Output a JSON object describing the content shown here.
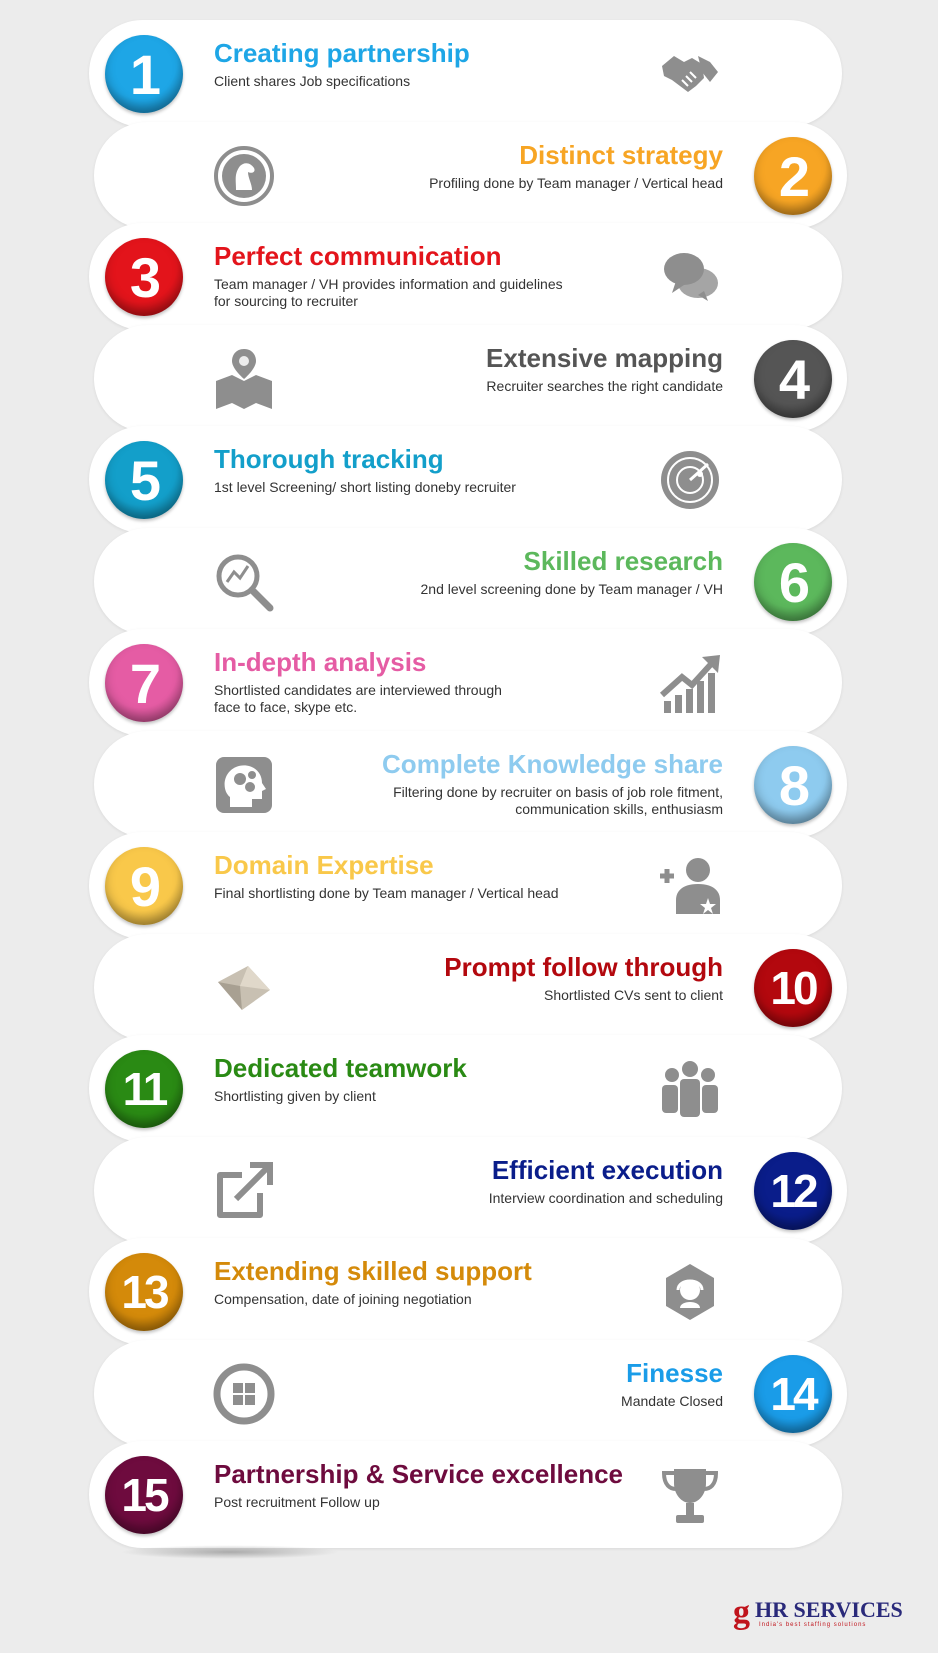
{
  "steps": [
    {
      "number": "1",
      "title": "Creating partnership",
      "description": "Client shares Job specifications",
      "color": "#1ea6e6",
      "side": "left",
      "icon": "handshake-icon"
    },
    {
      "number": "2",
      "title": "Distinct strategy",
      "description": "Profiling done by Team manager / Vertical head",
      "color": "#f7a524",
      "side": "right",
      "icon": "chess-knight-icon"
    },
    {
      "number": "3",
      "title": "Perfect communication",
      "description": "Team manager / VH provides information and guidelines\n for sourcing to recruiter",
      "color": "#e3141b",
      "side": "left",
      "icon": "chat-bubbles-icon"
    },
    {
      "number": "4",
      "title": "Extensive mapping",
      "description": "Recruiter searches the right candidate",
      "color": "#555555",
      "side": "right",
      "icon": "map-pin-icon"
    },
    {
      "number": "5",
      "title": "Thorough tracking",
      "description": "1st level Screening/ short listing doneby recruiter",
      "color": "#139fca",
      "side": "left",
      "icon": "radar-icon"
    },
    {
      "number": "6",
      "title": "Skilled research",
      "description": "2nd level screening done by Team manager / VH",
      "color": "#5cb85c",
      "side": "right",
      "icon": "magnifier-chart-icon"
    },
    {
      "number": "7",
      "title": "In-depth analysis",
      "description": "Shortlisted candidates are interviewed through\nface to face, skype etc.",
      "color": "#e55ca4",
      "side": "left",
      "icon": "growth-chart-icon"
    },
    {
      "number": "8",
      "title": "Complete Knowledge share",
      "description": "Filtering done by recruiter on basis of job role fitment,\ncommunication skills, enthusiasm",
      "color": "#8ecbef",
      "side": "right",
      "icon": "brain-gears-icon"
    },
    {
      "number": "9",
      "title": "Domain Expertise",
      "description": "Final shortlisting done by Team manager / Vertical head",
      "color": "#f9c84a",
      "side": "left",
      "icon": "add-user-star-icon"
    },
    {
      "number": "10",
      "title": "Prompt follow through",
      "description": "Shortlisted CVs sent to client",
      "color": "#b3080e",
      "side": "right",
      "icon": "envelope-icon"
    },
    {
      "number": "11",
      "title": "Dedicated teamwork",
      "description": "Shortlisting given by client",
      "color": "#2a8a14",
      "side": "left",
      "icon": "team-icon"
    },
    {
      "number": "12",
      "title": "Efficient execution",
      "description": "Interview coordination and scheduling",
      "color": "#0a1d8a",
      "side": "right",
      "icon": "external-link-icon"
    },
    {
      "number": "13",
      "title": "Extending skilled support",
      "description": "Compensation, date of joining negotiation",
      "color": "#d48a0a",
      "side": "left",
      "icon": "support-headset-icon"
    },
    {
      "number": "14",
      "title": "Finesse",
      "description": "Mandate Closed",
      "color": "#1a9ce8",
      "side": "right",
      "icon": "grid-circle-icon"
    },
    {
      "number": "15",
      "title": "Partnership & Service excellence",
      "description": "Post recruitment Follow up",
      "color": "#6e0b3e",
      "side": "left",
      "icon": "trophy-icon"
    }
  ],
  "logo": {
    "mark": "g",
    "brand": "HR SERVICES",
    "tagline": "India's best staffing solutions"
  }
}
